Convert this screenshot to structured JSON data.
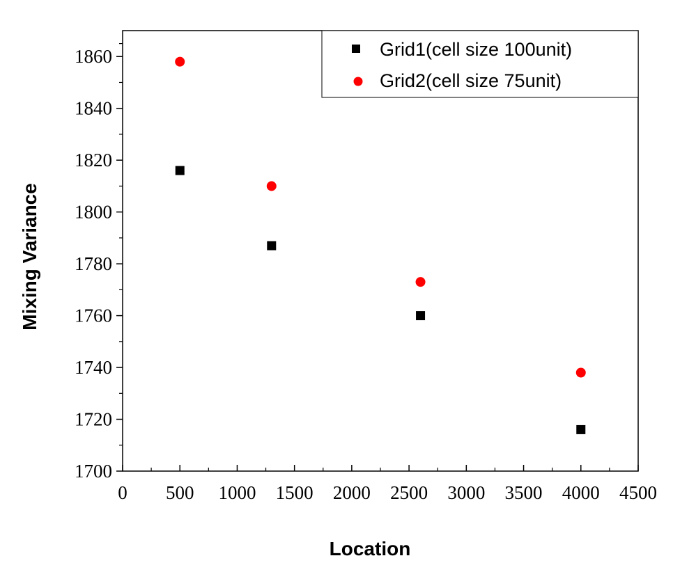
{
  "chart_data": {
    "type": "scatter",
    "title": "",
    "xlabel": "Location",
    "ylabel": "Mixing Variance",
    "xlim": [
      0,
      4500
    ],
    "ylim": [
      1700,
      1870
    ],
    "xticks": [
      0,
      500,
      1000,
      1500,
      2000,
      2500,
      3000,
      3500,
      4000,
      4500
    ],
    "yticks": [
      1700,
      1720,
      1740,
      1760,
      1780,
      1800,
      1820,
      1840,
      1860
    ],
    "grid": false,
    "legend_position": "top-right",
    "series": [
      {
        "name": "Grid1(cell size 100unit)",
        "marker": "square",
        "color": "#000000",
        "x": [
          500,
          1300,
          2600,
          4000
        ],
        "y": [
          1816,
          1787,
          1760,
          1716
        ]
      },
      {
        "name": "Grid2(cell size 75unit)",
        "marker": "circle",
        "color": "#ff0000",
        "x": [
          500,
          1300,
          2600,
          4000
        ],
        "y": [
          1858,
          1810,
          1773,
          1738
        ]
      }
    ]
  }
}
